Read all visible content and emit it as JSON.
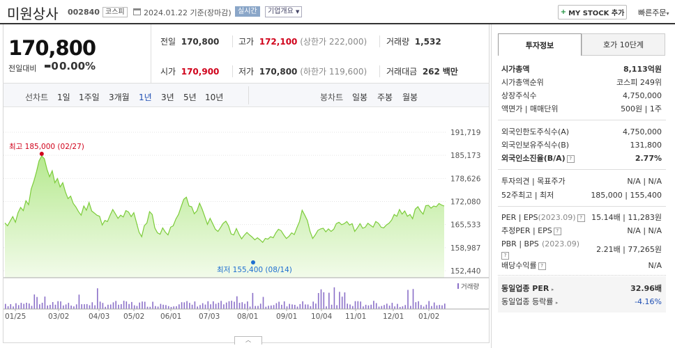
{
  "header": {
    "name": "미원상사",
    "code": "002840",
    "market": "코스피",
    "date": "2024.01.22",
    "basis": "기준(장마감)",
    "realtime": "실시간",
    "company_info": "기업개요",
    "my_stock": "MY STOCK 추가",
    "my_stock_plus": "+",
    "quick_order": "빠른주문",
    "quick_order_chevron": "▾"
  },
  "quote": {
    "price": "170,800",
    "change_label": "전일대비",
    "change_value": "0",
    "change_pct": "0.00%"
  },
  "stats": {
    "prev_label": "전일",
    "prev_value": "170,800",
    "high_label": "고가",
    "high_value": "172,100",
    "high_limit": "(상한가 222,000)",
    "volume_label": "거래량",
    "volume_value": "1,532",
    "open_label": "시가",
    "open_value": "170,900",
    "low_label": "저가",
    "low_value": "170,800",
    "low_limit": "(하한가 119,600)",
    "amount_label": "거래대금",
    "amount_value": "262",
    "amount_unit": "백만"
  },
  "period_bar": {
    "line_label": "선차트",
    "line_periods": [
      "1일",
      "1주일",
      "3개월",
      "1년",
      "3년",
      "5년",
      "10년"
    ],
    "selected": "1년",
    "candle_label": "봉차트",
    "candle_periods": [
      "일봉",
      "주봉",
      "월봉"
    ]
  },
  "chart_data": {
    "type": "area",
    "yticks": [
      "191,719",
      "185,173",
      "178,626",
      "172,080",
      "165,533",
      "158,987",
      "152,440"
    ],
    "ylim": [
      152440,
      191719
    ],
    "xticks": [
      "01/25",
      "03/02",
      "04/03",
      "05/02",
      "06/01",
      "07/03",
      "08/01",
      "09/01",
      "10/04",
      "11/01",
      "12/01",
      "01/02"
    ],
    "max_label": "최고 185,000 (02/27)",
    "min_label": "최저 155,400 (08/14)",
    "volume_label": "거래량",
    "line_color": "#7ccc3a",
    "max_color": "#d0021b",
    "min_color": "#1e6fd0",
    "series": [
      166000,
      165200,
      166500,
      167800,
      166200,
      168900,
      170400,
      169500,
      172300,
      171200,
      175600,
      177800,
      180500,
      183600,
      185000,
      184200,
      181200,
      179100,
      180800,
      177400,
      178600,
      176200,
      177400,
      174800,
      172900,
      173600,
      171500,
      170500,
      169200,
      168200,
      170800,
      169600,
      171800,
      169400,
      168800,
      168200,
      167900,
      165400,
      166700,
      166400,
      168200,
      169800,
      168600,
      167300,
      168200,
      167700,
      169500,
      169100,
      167800,
      168900,
      166200,
      163400,
      162100,
      165200,
      166000,
      169200,
      168400,
      164600,
      163200,
      162800,
      164600,
      163400,
      162600,
      164800,
      165200,
      167100,
      168400,
      170600,
      172700,
      173300,
      170800,
      170600,
      168600,
      169400,
      171600,
      169900,
      167800,
      165600,
      167300,
      165800,
      164200,
      163600,
      164700,
      165900,
      166500,
      165200,
      162900,
      162600,
      164400,
      162800,
      161500,
      162500,
      163300,
      162600,
      162000,
      161200,
      161800,
      161200,
      160500,
      161600,
      161400,
      162100,
      161800,
      163200,
      164200,
      163800,
      162600,
      161600,
      162200,
      163200,
      162700,
      164600,
      166400,
      169600,
      168200,
      166700,
      163600,
      161600,
      162600,
      163900,
      164300,
      164500,
      163500,
      164300,
      163600,
      164200,
      165800,
      166200,
      165500,
      165800,
      166400,
      165400,
      165800,
      163600,
      164600,
      165800,
      164500,
      164800,
      165900,
      165300,
      164800,
      166400,
      165900,
      164800,
      164600,
      165400,
      165900,
      166800,
      168400,
      167900,
      169800,
      168500,
      169400,
      167900,
      168400,
      167200,
      169900,
      170600,
      169400,
      168500,
      170900,
      171000,
      170200,
      170800,
      170600,
      171500,
      171100,
      170800
    ]
  },
  "invest_tabs": [
    "투자정보",
    "호가 10단계"
  ],
  "invest": {
    "market_cap_label": "시가총액",
    "market_cap_value": "8,113억원",
    "rank_label": "시가총액순위",
    "rank_value": "코스피 249위",
    "shares_label": "상장주식수",
    "shares_value": "4,750,000",
    "par_label": "액면가 | 매매단위",
    "par_value": "500원 | 1주",
    "foreign_limit_label": "외국인한도주식수(A)",
    "foreign_limit_value": "4,750,000",
    "foreign_hold_label": "외국인보유주식수(B)",
    "foreign_hold_value": "131,800",
    "foreign_ratio_label": "외국인소진율(B/A)",
    "foreign_ratio_value": "2.77%",
    "opinion_label": "투자의견 | 목표주가",
    "opinion_value": "N/A | N/A",
    "w52_label": "52주최고 | 최저",
    "w52_value": "185,000 | 155,400",
    "per_label": "PER | EPS",
    "per_year": "(2023.09)",
    "per_value": "15.14배 | 11,283원",
    "est_label": "추정PER | EPS",
    "est_value": "N/A | N/A",
    "pbr_label": "PBR | BPS",
    "pbr_year": "(2023.09)",
    "pbr_value": "2.21배 | 77,265원",
    "div_label": "배당수익률",
    "div_value": "N/A",
    "ind_per_label": "동일업종 PER",
    "ind_per_value": "32.96배",
    "ind_rate_label": "동일업종 등락률",
    "ind_rate_value": "-4.16%"
  }
}
